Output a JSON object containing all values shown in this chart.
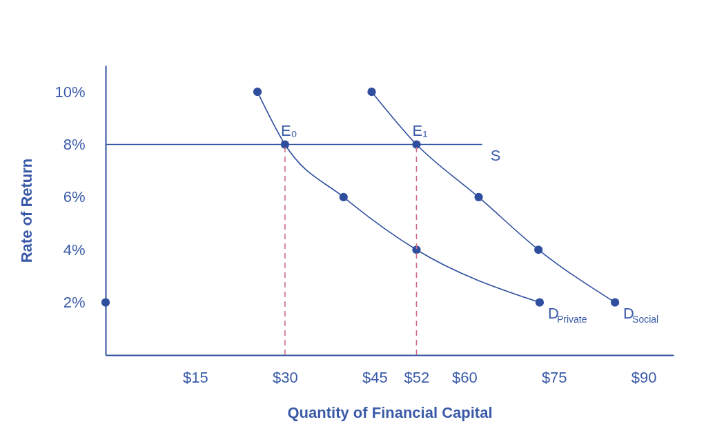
{
  "chart_data": {
    "type": "line",
    "xlabel": "Quantity of Financial Capital",
    "ylabel": "Rate of Return",
    "xlim": [
      0,
      95
    ],
    "ylim": [
      0,
      11
    ],
    "xticks": [
      {
        "value": 15,
        "label": "$15"
      },
      {
        "value": 30,
        "label": "$30"
      },
      {
        "value": 45,
        "label": "$45"
      },
      {
        "value": 52,
        "label": "$52"
      },
      {
        "value": 60,
        "label": "$60"
      },
      {
        "value": 75,
        "label": "$75"
      },
      {
        "value": 90,
        "label": "$90"
      }
    ],
    "yticks": [
      {
        "value": 2,
        "label": "2%"
      },
      {
        "value": 4,
        "label": "4%"
      },
      {
        "value": 6,
        "label": "6%"
      },
      {
        "value": 8,
        "label": "8%"
      },
      {
        "value": 10,
        "label": "10%"
      }
    ],
    "grid": false,
    "marker": "circle",
    "series": [
      {
        "name": "D$_{Private}$",
        "color": "#2f4f9e",
        "x": [
          25.4,
          30,
          39.8,
          52,
          72.6
        ],
        "values": [
          10,
          8,
          6,
          4,
          2
        ]
      },
      {
        "name": "D$_{Social}$",
        "color": "#2f4f9e",
        "x": [
          44.5,
          52,
          62.4,
          72.4,
          85.2
        ],
        "values": [
          10,
          8,
          6,
          4,
          2
        ]
      },
      {
        "name": "S",
        "color": "#2f4f9e",
        "marker": "none",
        "x": [
          0,
          63
        ],
        "values": [
          8,
          8
        ]
      },
      {
        "color": "#d06a8a",
        "marker": "none",
        "line_style": "dashed",
        "x": [
          30,
          30
        ],
        "values": [
          0,
          8
        ]
      },
      {
        "color": "#d06a8a",
        "marker": "none",
        "line_style": "dashed",
        "x": [
          52,
          52
        ],
        "values": [
          0,
          8
        ]
      },
      {
        "color": "#2f4f9e",
        "x": [
          0
        ],
        "values": [
          2
        ]
      }
    ],
    "annotations": [
      {
        "text": "E₀",
        "x": 30,
        "y": 8
      },
      {
        "text": "E₁",
        "x": 52,
        "y": 8
      }
    ]
  }
}
